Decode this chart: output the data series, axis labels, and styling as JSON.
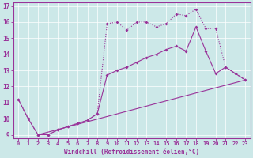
{
  "xlabel": "Windchill (Refroidissement éolien,°C)",
  "background_color": "#cce8e8",
  "line_color": "#993399",
  "xlim": [
    -0.5,
    23.5
  ],
  "ylim": [
    8.8,
    17.2
  ],
  "yticks": [
    9,
    10,
    11,
    12,
    13,
    14,
    15,
    16,
    17
  ],
  "xticks": [
    0,
    1,
    2,
    3,
    4,
    5,
    6,
    7,
    8,
    9,
    10,
    11,
    12,
    13,
    14,
    15,
    16,
    17,
    18,
    19,
    20,
    21,
    22,
    23
  ],
  "line1_x": [
    0,
    1,
    2,
    3,
    4,
    5,
    6,
    7,
    8,
    9,
    10,
    11,
    12,
    13,
    14,
    15,
    16,
    17,
    18,
    19,
    20,
    21,
    22,
    23
  ],
  "line1_y": [
    11.2,
    10.0,
    9.0,
    9.0,
    9.3,
    9.5,
    9.7,
    9.9,
    10.3,
    12.7,
    13.0,
    13.2,
    13.5,
    13.8,
    14.0,
    14.3,
    14.5,
    14.2,
    15.7,
    14.2,
    12.8,
    13.2,
    12.8,
    12.4
  ],
  "line2_x": [
    0,
    1,
    2,
    3,
    4,
    5,
    6,
    7,
    8,
    9,
    10,
    11,
    12,
    13,
    14,
    15,
    16,
    17,
    18,
    19,
    20,
    21,
    22,
    23
  ],
  "line2_y": [
    11.2,
    10.0,
    9.0,
    9.0,
    9.3,
    9.5,
    9.7,
    9.9,
    10.3,
    15.9,
    16.0,
    15.5,
    16.0,
    16.0,
    15.7,
    15.9,
    16.5,
    16.4,
    16.8,
    15.6,
    15.6,
    13.2,
    12.8,
    12.4
  ],
  "line3_x": [
    2,
    23
  ],
  "line3_y": [
    9.0,
    12.4
  ]
}
